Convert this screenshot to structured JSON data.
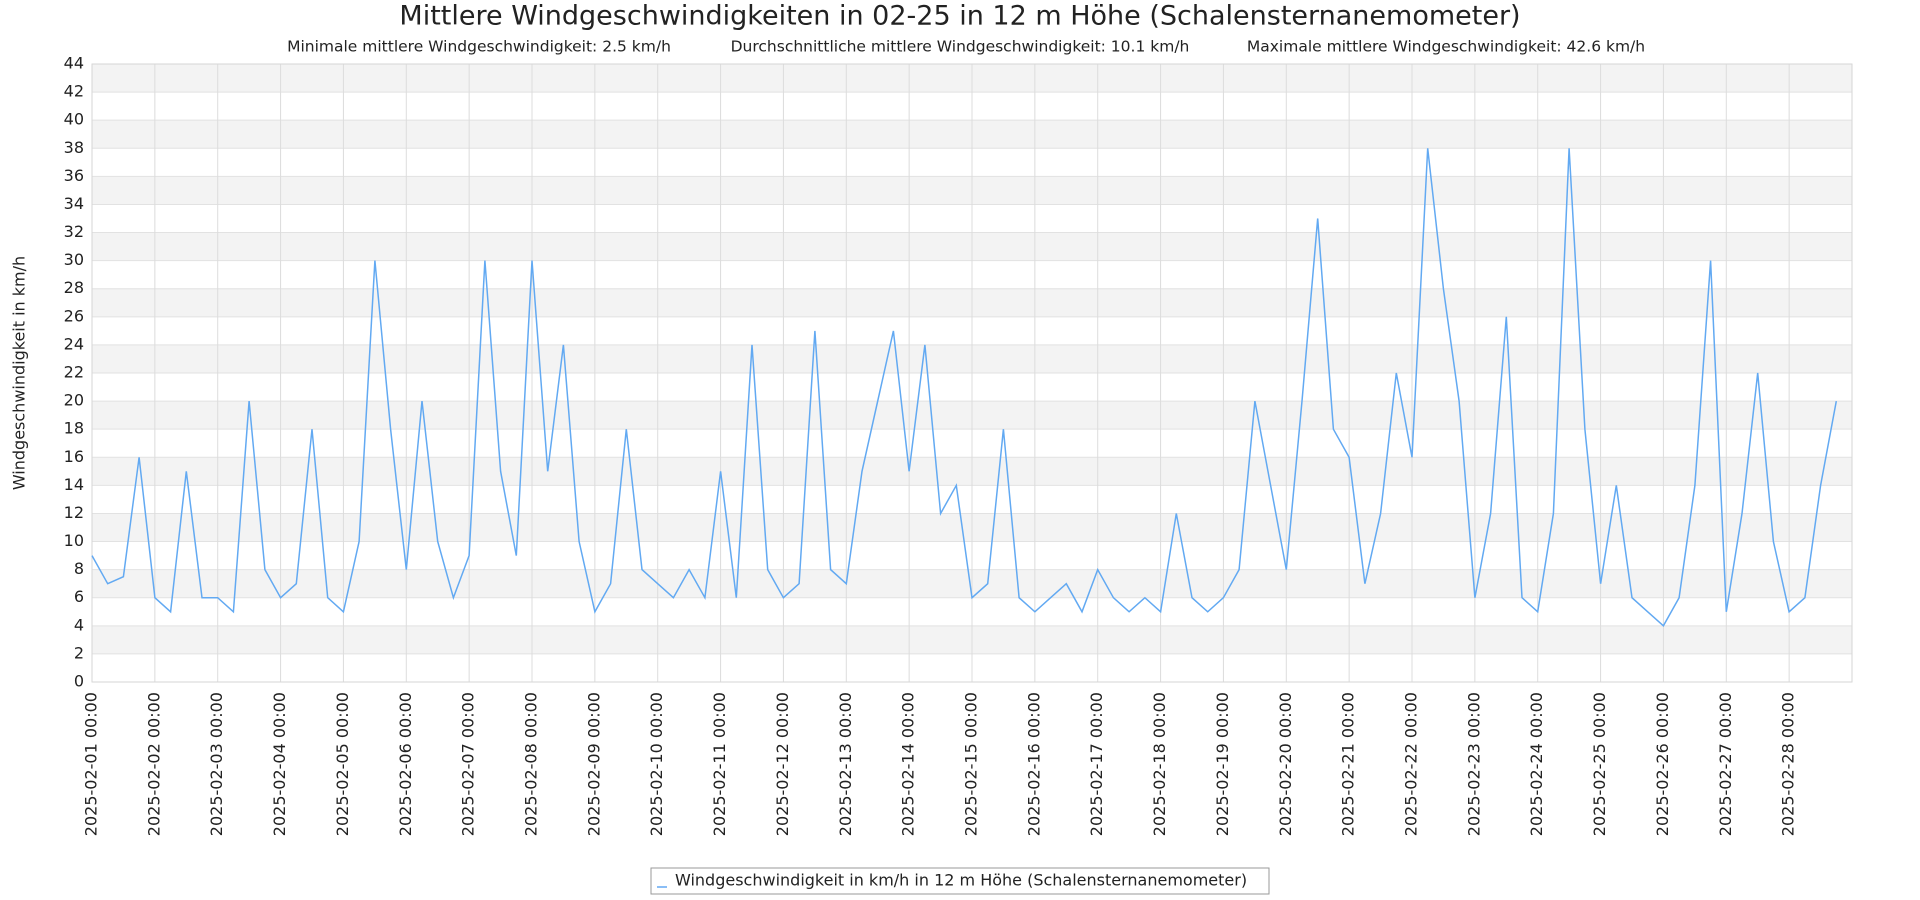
{
  "chart_data": {
    "type": "line",
    "title": "Mittlere Windgeschwindigkeiten in 02-25 in 12 m Höhe (Schalensternanemometer)",
    "subtitle": [
      "Minimale mittlere Windgeschwindigkeit: 2.5 km/h",
      "Durchschnittliche mittlere Windgeschwindigkeit: 10.1 km/h",
      "Maximale mittlere Windgeschwindigkeit: 42.6 km/h"
    ],
    "ylabel": "Windgeschwindigkeit in km/h",
    "ylim": [
      0,
      44
    ],
    "yticks": [
      0,
      2,
      4,
      6,
      8,
      10,
      12,
      14,
      16,
      18,
      20,
      22,
      24,
      26,
      28,
      30,
      32,
      34,
      36,
      38,
      40,
      42,
      44
    ],
    "xlim": [
      "2025-02-01 00:00",
      "2025-03-01 00:00"
    ],
    "xticks": [
      "2025-02-01 00:00",
      "2025-02-02 00:00",
      "2025-02-03 00:00",
      "2025-02-04 00:00",
      "2025-02-05 00:00",
      "2025-02-06 00:00",
      "2025-02-07 00:00",
      "2025-02-08 00:00",
      "2025-02-09 00:00",
      "2025-02-10 00:00",
      "2025-02-11 00:00",
      "2025-02-12 00:00",
      "2025-02-13 00:00",
      "2025-02-14 00:00",
      "2025-02-15 00:00",
      "2025-02-16 00:00",
      "2025-02-17 00:00",
      "2025-02-18 00:00",
      "2025-02-19 00:00",
      "2025-02-20 00:00",
      "2025-02-21 00:00",
      "2025-02-22 00:00",
      "2025-02-23 00:00",
      "2025-02-24 00:00",
      "2025-02-25 00:00",
      "2025-02-26 00:00",
      "2025-02-27 00:00",
      "2025-02-28 00:00"
    ],
    "grid": true,
    "legend": "bottom",
    "series": [
      {
        "name": "Windgeschwindigkeit in km/h in 12 m Höhe (Schalensternanemometer)",
        "color": "#62a9f2",
        "x": [
          "2025-02-01 00:00",
          "2025-02-01 06:00",
          "2025-02-01 12:00",
          "2025-02-01 18:00",
          "2025-02-02 00:00",
          "2025-02-02 06:00",
          "2025-02-02 12:00",
          "2025-02-02 18:00",
          "2025-02-03 00:00",
          "2025-02-03 06:00",
          "2025-02-03 12:00",
          "2025-02-03 18:00",
          "2025-02-04 00:00",
          "2025-02-04 06:00",
          "2025-02-04 12:00",
          "2025-02-04 18:00",
          "2025-02-05 00:00",
          "2025-02-05 06:00",
          "2025-02-05 12:00",
          "2025-02-05 18:00",
          "2025-02-06 00:00",
          "2025-02-06 06:00",
          "2025-02-06 12:00",
          "2025-02-06 18:00",
          "2025-02-07 00:00",
          "2025-02-07 06:00",
          "2025-02-07 12:00",
          "2025-02-07 18:00",
          "2025-02-08 00:00",
          "2025-02-08 06:00",
          "2025-02-08 12:00",
          "2025-02-08 18:00",
          "2025-02-09 00:00",
          "2025-02-09 06:00",
          "2025-02-09 12:00",
          "2025-02-09 18:00",
          "2025-02-10 00:00",
          "2025-02-10 06:00",
          "2025-02-10 12:00",
          "2025-02-10 18:00",
          "2025-02-11 00:00",
          "2025-02-11 06:00",
          "2025-02-11 12:00",
          "2025-02-11 18:00",
          "2025-02-12 00:00",
          "2025-02-12 06:00",
          "2025-02-12 12:00",
          "2025-02-12 18:00",
          "2025-02-13 00:00",
          "2025-02-13 06:00",
          "2025-02-13 12:00",
          "2025-02-13 18:00",
          "2025-02-14 00:00",
          "2025-02-14 06:00",
          "2025-02-14 12:00",
          "2025-02-14 18:00",
          "2025-02-15 00:00",
          "2025-02-15 06:00",
          "2025-02-15 12:00",
          "2025-02-15 18:00",
          "2025-02-16 00:00",
          "2025-02-16 06:00",
          "2025-02-16 12:00",
          "2025-02-16 18:00",
          "2025-02-17 00:00",
          "2025-02-17 06:00",
          "2025-02-17 12:00",
          "2025-02-17 18:00",
          "2025-02-18 00:00",
          "2025-02-18 06:00",
          "2025-02-18 12:00",
          "2025-02-18 18:00",
          "2025-02-19 00:00",
          "2025-02-19 06:00",
          "2025-02-19 12:00",
          "2025-02-19 18:00",
          "2025-02-20 00:00",
          "2025-02-20 06:00",
          "2025-02-20 12:00",
          "2025-02-20 18:00",
          "2025-02-21 00:00",
          "2025-02-21 06:00",
          "2025-02-21 12:00",
          "2025-02-21 18:00",
          "2025-02-22 00:00",
          "2025-02-22 06:00",
          "2025-02-22 12:00",
          "2025-02-22 18:00",
          "2025-02-23 00:00",
          "2025-02-23 06:00",
          "2025-02-23 12:00",
          "2025-02-23 18:00",
          "2025-02-24 00:00",
          "2025-02-24 06:00",
          "2025-02-24 12:00",
          "2025-02-24 18:00",
          "2025-02-25 00:00",
          "2025-02-25 06:00",
          "2025-02-25 12:00",
          "2025-02-25 18:00",
          "2025-02-26 00:00",
          "2025-02-26 06:00",
          "2025-02-26 12:00",
          "2025-02-26 18:00",
          "2025-02-27 00:00",
          "2025-02-27 06:00",
          "2025-02-27 12:00",
          "2025-02-27 18:00",
          "2025-02-28 00:00",
          "2025-02-28 06:00",
          "2025-02-28 12:00",
          "2025-02-28 18:00"
        ],
        "values": [
          9,
          7,
          7.5,
          16,
          6,
          5,
          15,
          6,
          6,
          5,
          20,
          8,
          6,
          7,
          18,
          6,
          5,
          10,
          30,
          18,
          8,
          20,
          10,
          6,
          9,
          30,
          15,
          9,
          30,
          15,
          24,
          10,
          5,
          7,
          18,
          8,
          7,
          6,
          8,
          6,
          15,
          6,
          24,
          8,
          6,
          7,
          25,
          8,
          7,
          15,
          20,
          25,
          15,
          24,
          12,
          14,
          6,
          7,
          18,
          6,
          5,
          6,
          7,
          5,
          8,
          6,
          5,
          6,
          5,
          12,
          6,
          5,
          6,
          8,
          20,
          14,
          8,
          20,
          33,
          18,
          16,
          7,
          12,
          22,
          16,
          38,
          28,
          20,
          6,
          12,
          26,
          6,
          5,
          12,
          38,
          18,
          7,
          14,
          6,
          5,
          4,
          6,
          14,
          30,
          5,
          12,
          22,
          10,
          5,
          6,
          14,
          20
        ]
      }
    ]
  }
}
